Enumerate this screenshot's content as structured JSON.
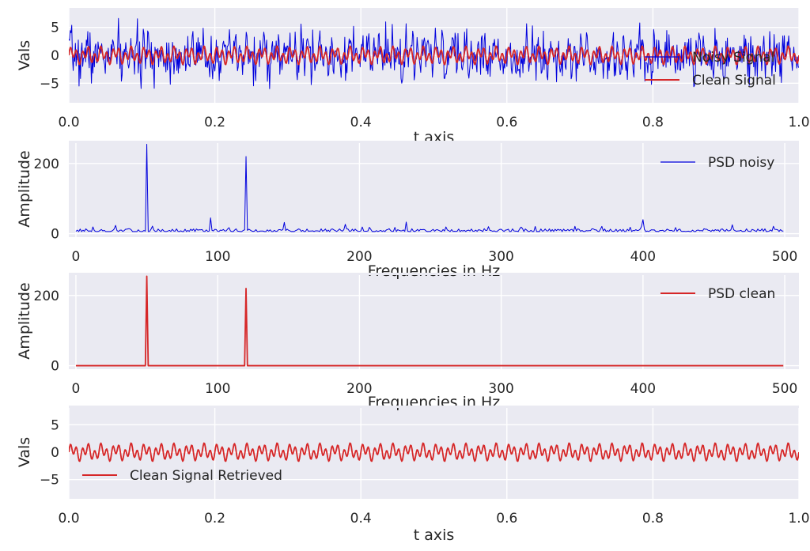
{
  "colors": {
    "panel_bg": "#eaeaf2",
    "grid": "#ffffff",
    "noisy": "#0000dd",
    "clean": "#d62728",
    "text": "#262626"
  },
  "chart_data": [
    {
      "type": "line",
      "xlabel": "t axis",
      "ylabel": "Vals",
      "xlim": [
        0.0,
        1.0
      ],
      "ylim": [
        -8.5,
        8.5
      ],
      "xticks": [
        "0.0",
        "0.2",
        "0.4",
        "0.6",
        "0.8",
        "1.0"
      ],
      "yticks": [
        "5",
        "0",
        "-5"
      ],
      "grid": true,
      "legend_position": "lower-right",
      "series": [
        {
          "name": "Noisy Signal",
          "color": "#0000dd",
          "signal": {
            "components": [
              [
                50,
                0.7
              ],
              [
                120,
                1.0
              ]
            ],
            "noise_sd": 2.0,
            "noise_seed": 7,
            "n": 1000
          }
        },
        {
          "name": "Clean Signal",
          "color": "#d62728",
          "signal": {
            "components": [
              [
                50,
                0.7
              ],
              [
                120,
                1.0
              ]
            ],
            "n": 1000
          }
        }
      ]
    },
    {
      "type": "line",
      "xlabel": "Frequencies in Hz",
      "ylabel": "Amplitude",
      "xlim": [
        -5,
        510
      ],
      "ylim": [
        -10,
        265
      ],
      "xticks": [
        "0",
        "100",
        "200",
        "300",
        "400",
        "500"
      ],
      "yticks": [
        "200",
        "0"
      ],
      "grid": true,
      "legend_position": "upper-right",
      "series": [
        {
          "name": "PSD noisy",
          "color": "#0000dd",
          "x_range": [
            0,
            499
          ],
          "baseline": 6,
          "noise_amp": 8,
          "noise_seed": 13,
          "peaks": [
            [
              50,
              255
            ],
            [
              120,
              220
            ],
            [
              95,
              45
            ],
            [
              400,
              40
            ],
            [
              147,
              32
            ],
            [
              233,
              33
            ]
          ]
        }
      ]
    },
    {
      "type": "line",
      "xlabel": "Frequencies in Hz",
      "ylabel": "Amplitude",
      "xlim": [
        -5,
        510
      ],
      "ylim": [
        -10,
        265
      ],
      "xticks": [
        "0",
        "100",
        "200",
        "300",
        "400",
        "500"
      ],
      "yticks": [
        "200",
        "0"
      ],
      "grid": true,
      "legend_position": "upper-right",
      "series": [
        {
          "name": "PSD clean",
          "color": "#d62728",
          "x_range": [
            0,
            499
          ],
          "baseline": 0,
          "peaks": [
            [
              50,
              255
            ],
            [
              120,
              220
            ]
          ]
        }
      ]
    },
    {
      "type": "line",
      "xlabel": "t axis",
      "ylabel": "Vals",
      "xlim": [
        0.0,
        1.0
      ],
      "ylim": [
        -8.5,
        8.5
      ],
      "xticks": [
        "0.0",
        "0.2",
        "0.4",
        "0.6",
        "0.8",
        "1.0"
      ],
      "yticks": [
        "5",
        "0",
        "-5"
      ],
      "grid": true,
      "legend_position": "lower-left",
      "series": [
        {
          "name": "Clean Signal Retrieved",
          "color": "#d62728",
          "signal": {
            "components": [
              [
                50,
                0.7
              ],
              [
                120,
                1.0
              ]
            ],
            "n": 1000
          }
        }
      ]
    }
  ]
}
